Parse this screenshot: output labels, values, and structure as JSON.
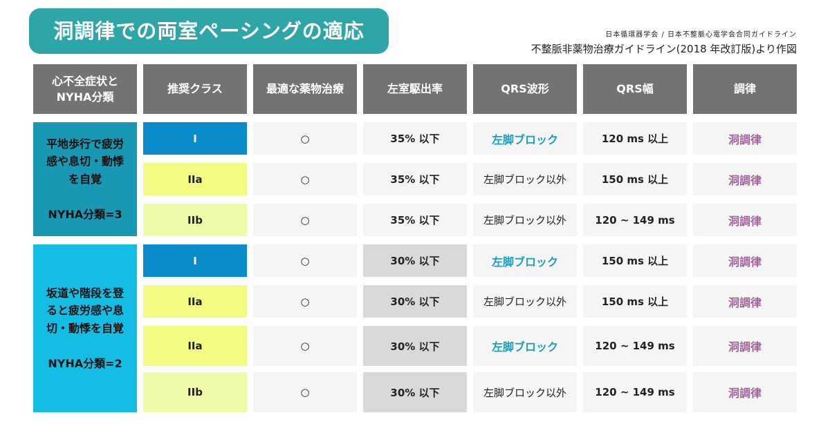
{
  "title": "洞調律での両室ペーシングの適応",
  "source": {
    "line1": "日本循環器学会 / 日本不整脈心電学会合同ガイドライン",
    "line2": "不整脈非薬物治療ガイドライン(2018 年改訂版)より作図"
  },
  "headers": [
    "心不全症状と\nNYHA分類",
    "推奨クラス",
    "最適な薬物治療",
    "左室駆出率",
    "QRS波形",
    "QRS幅",
    "調律"
  ],
  "groups": [
    {
      "text": "平地歩行で疲労\n感や息切・動悸\nを自覚\n\nNYHA分類=3",
      "color": "#1898b3"
    },
    {
      "text": "坂道や階段を登\nると疲労感や息\n切・動悸を自覚\n\nNYHA分類=2",
      "color": "#13bde3"
    }
  ],
  "rows": [
    {
      "class": "I",
      "drug": "○",
      "lvef": "35% 以下",
      "qrs_wave": "左脚ブロック",
      "qrs_width": "120 ms 以上",
      "rhythm": "洞調律"
    },
    {
      "class": "IIa",
      "drug": "○",
      "lvef": "35% 以下",
      "qrs_wave": "左脚ブロック以外",
      "qrs_width": "150 ms 以上",
      "rhythm": "洞調律"
    },
    {
      "class": "IIb",
      "drug": "○",
      "lvef": "35% 以下",
      "qrs_wave": "左脚ブロック以外",
      "qrs_width": "120 ~ 149 ms",
      "rhythm": "洞調律"
    },
    {
      "class": "I",
      "drug": "○",
      "lvef": "30% 以下",
      "qrs_wave": "左脚ブロック",
      "qrs_width": "150 ms 以上",
      "rhythm": "洞調律"
    },
    {
      "class": "IIa",
      "drug": "○",
      "lvef": "30% 以下",
      "qrs_wave": "左脚ブロック以外",
      "qrs_width": "150 ms 以上",
      "rhythm": "洞調律"
    },
    {
      "class": "IIa",
      "drug": "○",
      "lvef": "30% 以下",
      "qrs_wave": "左脚ブロック",
      "qrs_width": "120 ~ 149 ms",
      "rhythm": "洞調律"
    },
    {
      "class": "IIb",
      "drug": "○",
      "lvef": "30% 以下",
      "qrs_wave": "左脚ブロック以外",
      "qrs_width": "120 ~ 149 ms",
      "rhythm": "洞調律"
    }
  ],
  "colors": {
    "title_bg": "#2ea6a8",
    "header_bg": "#737373",
    "class_I": "#0a8ccc",
    "class_IIa": "#f3fb83",
    "class_IIb": "#f0fbaa",
    "lbbb_text": "#1aa0bd",
    "rhythm_text": "#a0639a"
  }
}
